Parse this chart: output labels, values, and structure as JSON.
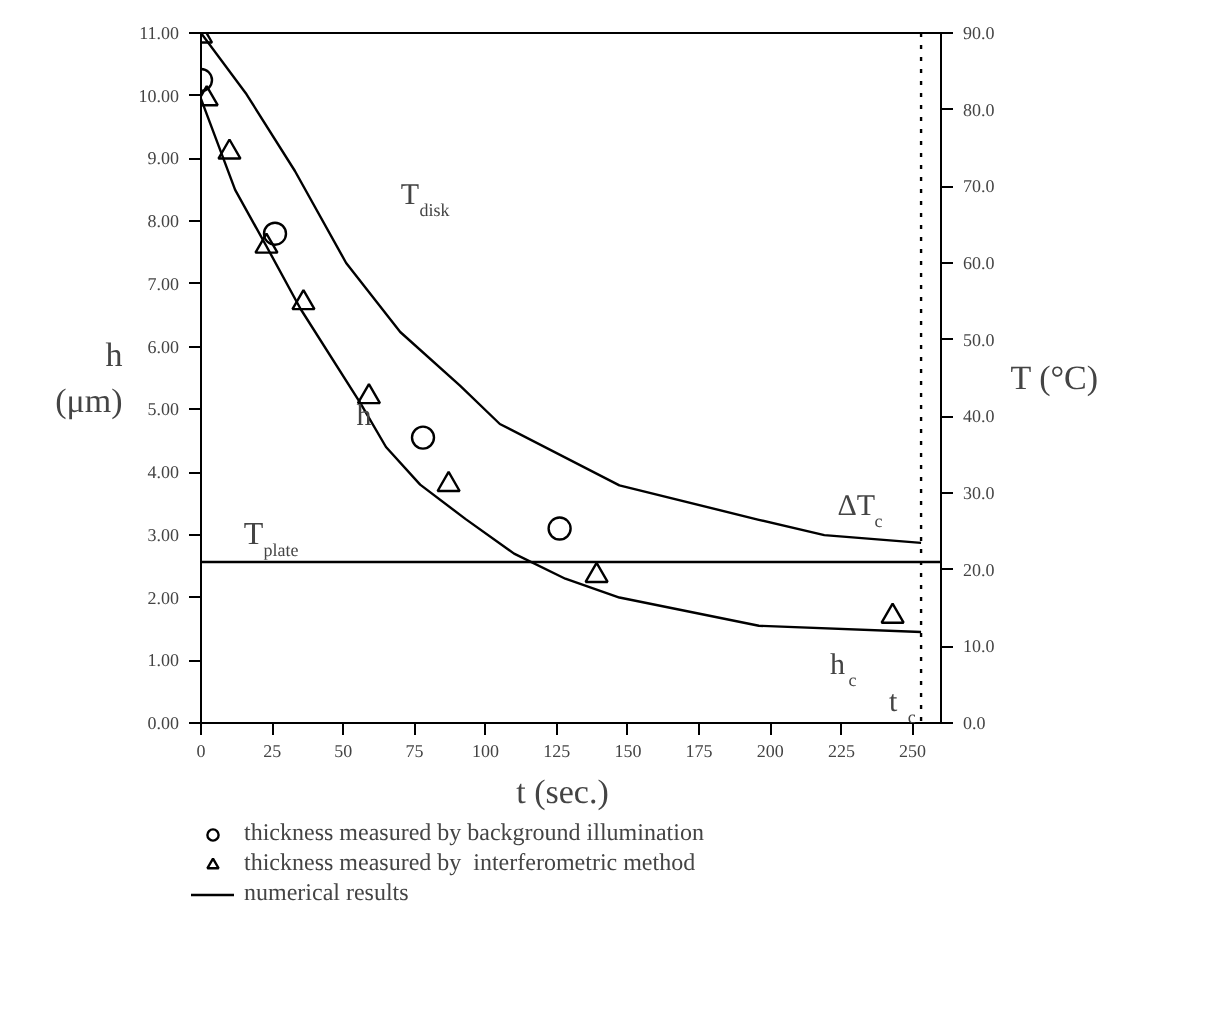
{
  "chart_data": {
    "type": "line",
    "xlabel": "t   (sec.)",
    "ylabel": "h\n(μm)",
    "y2label": "T (°C)",
    "xlim": [
      0,
      260
    ],
    "xticks": [
      0,
      25,
      50,
      75,
      100,
      125,
      150,
      175,
      200,
      225,
      250
    ],
    "ylim": [
      0,
      11
    ],
    "yticks": [
      {
        "value": 0,
        "label": "0.00"
      },
      {
        "value": 1,
        "label": "1.00"
      },
      {
        "value": 2,
        "label": "2.00"
      },
      {
        "value": 3,
        "label": "3.00"
      },
      {
        "value": 4,
        "label": "4.00"
      },
      {
        "value": 5,
        "label": "5.00"
      },
      {
        "value": 6,
        "label": "6.00"
      },
      {
        "value": 7,
        "label": "7.00"
      },
      {
        "value": 8,
        "label": "8.00"
      },
      {
        "value": 9,
        "label": "9.00"
      },
      {
        "value": 10,
        "label": "10.00"
      },
      {
        "value": 11,
        "label": "11.00"
      }
    ],
    "y2lim": [
      0,
      90
    ],
    "y2ticks": [
      {
        "value": 0,
        "label": "0.0"
      },
      {
        "value": 10,
        "label": "10.0"
      },
      {
        "value": 20,
        "label": "20.0"
      },
      {
        "value": 30,
        "label": "30.0"
      },
      {
        "value": 40,
        "label": "40.0"
      },
      {
        "value": 50,
        "label": "50.0"
      },
      {
        "value": 60,
        "label": "60.0"
      },
      {
        "value": 70,
        "label": "70.0"
      },
      {
        "value": 80,
        "label": "80.0"
      },
      {
        "value": 90,
        "label": "90.0"
      }
    ],
    "series": [
      {
        "name": "thickness measured by background illumination",
        "type": "scatter",
        "marker": "circle",
        "color": "#000000",
        "x": [
          0,
          26,
          78,
          126
        ],
        "values": [
          10.25,
          7.8,
          4.55,
          3.1
        ]
      },
      {
        "name": "thickness measured by  interferometric method",
        "type": "scatter",
        "marker": "triangle",
        "color": "#000000",
        "x": [
          0,
          2,
          10,
          23,
          36,
          59,
          87,
          139,
          243
        ],
        "values": [
          10.95,
          9.95,
          9.1,
          7.6,
          6.7,
          5.2,
          3.8,
          2.35,
          1.7
        ]
      },
      {
        "name": "numerical results",
        "color": "#000000",
        "x": [
          0,
          12,
          23,
          35,
          56,
          65,
          77,
          93,
          110,
          128,
          147,
          196,
          253
        ],
        "values": [
          9.95,
          8.5,
          7.6,
          6.6,
          5.1,
          4.4,
          3.8,
          3.25,
          2.7,
          2.3,
          2.0,
          1.55,
          1.45
        ]
      },
      {
        "axis": "y2",
        "color": "#000000",
        "x": [
          0,
          16,
          33,
          51,
          70,
          91,
          105,
          147,
          196,
          219,
          253
        ],
        "values": [
          90,
          82,
          72,
          60,
          51,
          44,
          39,
          31,
          26.5,
          24.5,
          23.5
        ]
      }
    ],
    "ref_lines": [
      {
        "axis": "y2",
        "value": 21,
        "label": "T$_{plate}$",
        "color": "#000000",
        "line_style": "solid"
      },
      {
        "axis": "x",
        "value": 253,
        "label": "t$_{c}$",
        "color": "#000000",
        "line_style": "dotted"
      }
    ],
    "annotations": [
      "T$_{disk}$",
      "h",
      "ΔT$_{c}$",
      "h$_{c}$"
    ],
    "legend": "bottom",
    "grid": false,
    "line_style": "solid"
  }
}
